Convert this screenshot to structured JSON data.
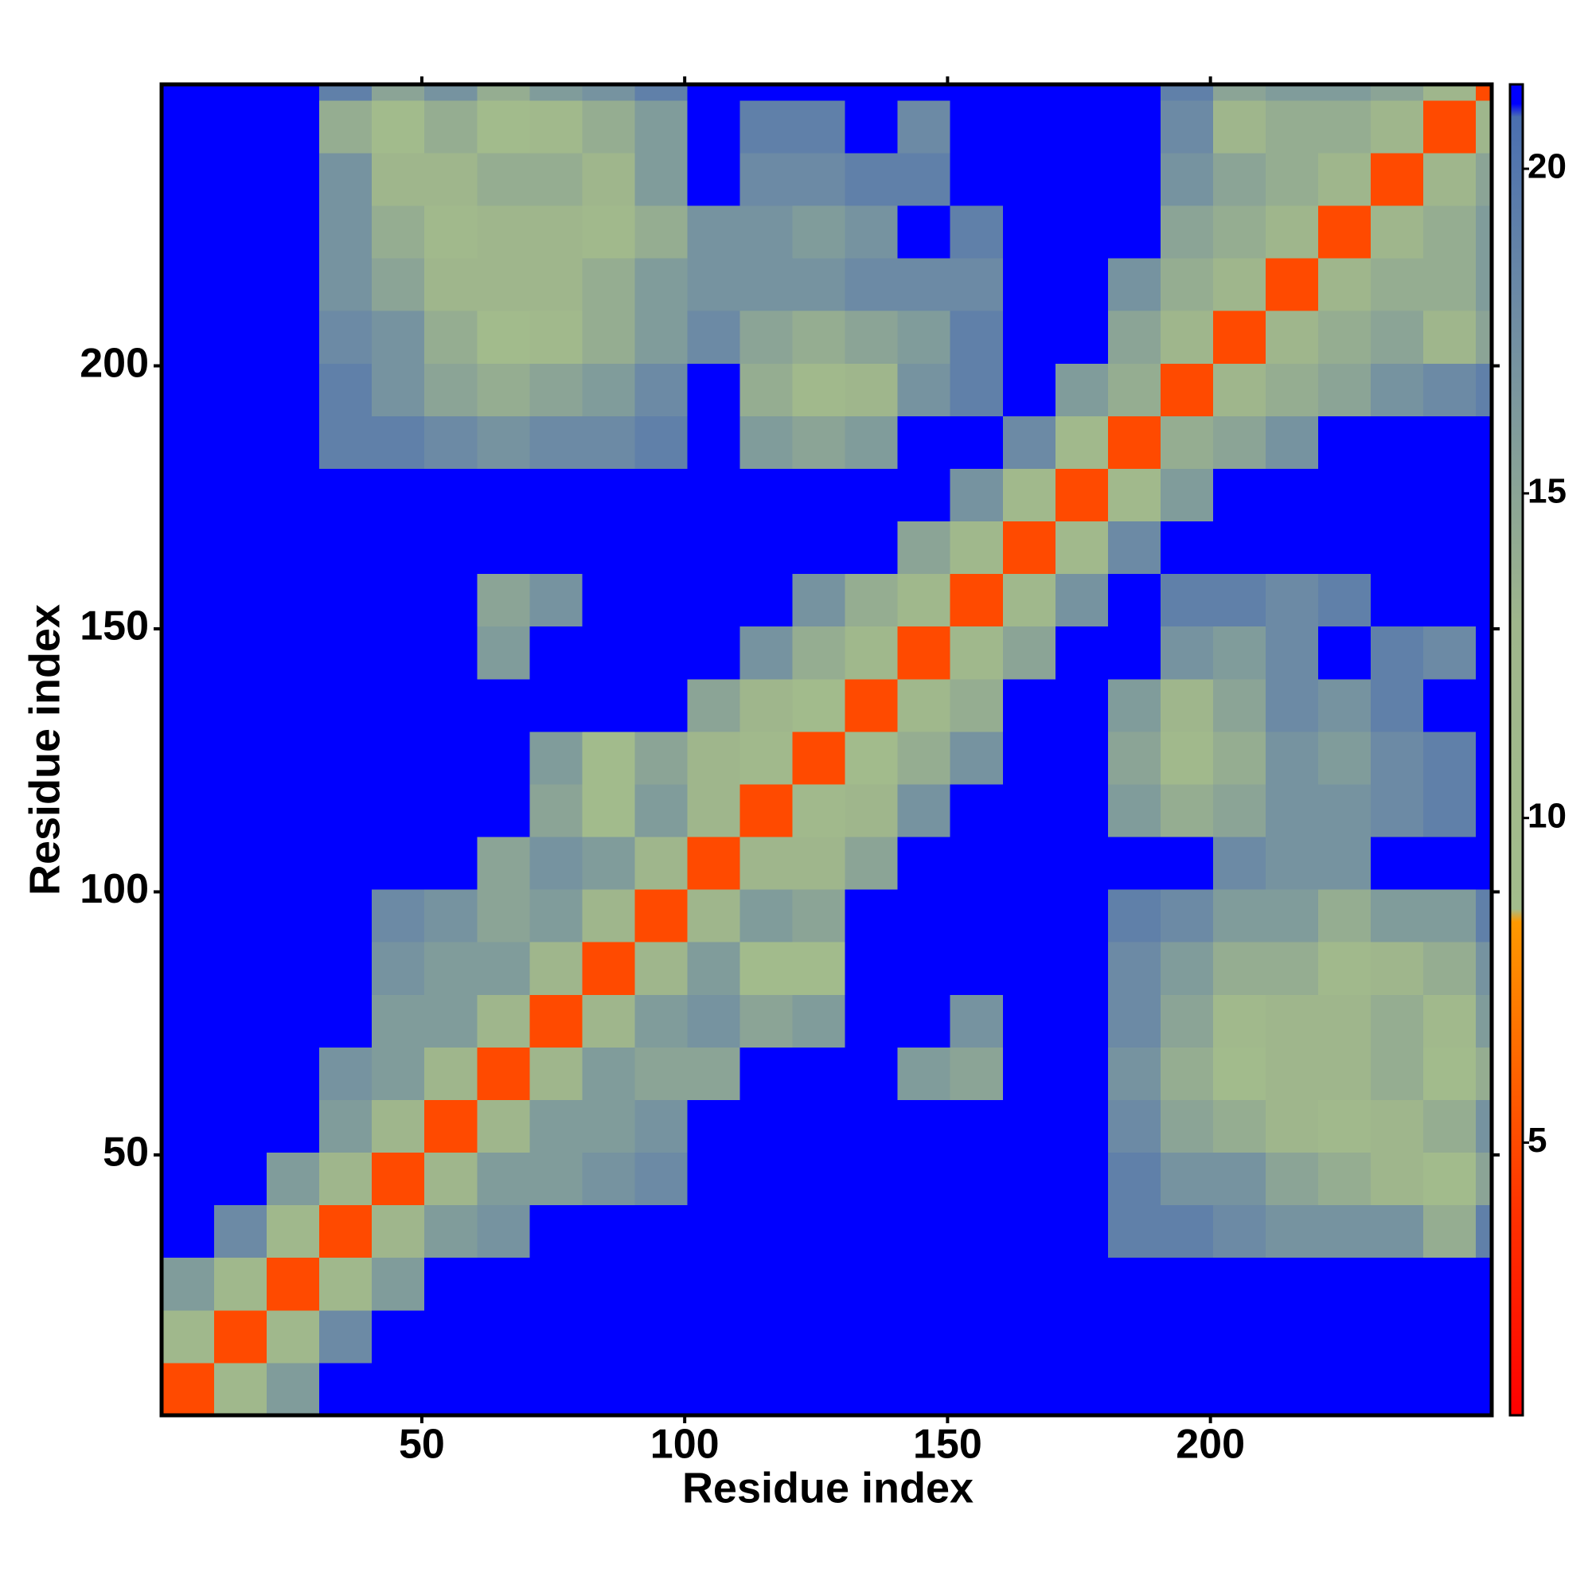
{
  "chart_data": {
    "type": "heatmap",
    "xlabel": "Residue index",
    "ylabel": "Residue index",
    "bins": [
      0.5,
      10.5,
      20.5,
      30.5,
      40.5,
      50.5,
      60.5,
      70.5,
      80.5,
      90.5,
      100.5,
      110.5,
      120.5,
      130.5,
      140.5,
      150.5,
      160.5,
      170.5,
      180.5,
      190.5,
      200.5,
      210.5,
      220.5,
      230.5,
      240.5,
      250.5,
      253.5
    ],
    "xlim": [
      0.5,
      253.5
    ],
    "ylim": [
      0.5,
      253.5
    ],
    "xticks": [
      50,
      100,
      150,
      200
    ],
    "yticks": [
      50,
      100,
      150,
      200
    ],
    "zlim": [
      0.8,
      21.3
    ],
    "zticks": [
      5,
      10,
      15,
      20
    ],
    "colorscale": [
      [
        0.8,
        "#ff0000"
      ],
      [
        4,
        "#ff3300"
      ],
      [
        8.4,
        "#ff9900"
      ],
      [
        8.6,
        "#a3bd8c"
      ],
      [
        13,
        "#9fb68c"
      ],
      [
        18,
        "#6c8aa5"
      ],
      [
        20.8,
        "#4a6fb0"
      ],
      [
        21,
        "#0000ff"
      ],
      [
        21.3,
        "#0000ff"
      ]
    ],
    "z": [
      [
        5,
        12,
        16,
        21,
        21,
        21,
        21,
        21,
        21,
        21,
        21,
        21,
        21,
        21,
        21,
        21,
        21,
        21,
        21,
        21,
        21,
        21,
        21,
        21,
        21,
        21
      ],
      [
        12,
        5,
        12,
        18,
        21,
        21,
        21,
        21,
        21,
        21,
        21,
        21,
        21,
        21,
        21,
        21,
        21,
        21,
        21,
        21,
        21,
        21,
        21,
        21,
        21,
        21
      ],
      [
        16,
        12,
        5,
        12,
        16,
        21,
        21,
        21,
        21,
        21,
        21,
        21,
        21,
        21,
        21,
        21,
        21,
        21,
        21,
        21,
        21,
        21,
        21,
        21,
        21,
        21
      ],
      [
        21,
        18,
        12,
        5,
        13,
        16,
        17,
        21,
        21,
        21,
        21,
        21,
        21,
        21,
        21,
        21,
        21,
        21,
        19,
        19,
        18,
        17,
        17,
        17,
        14,
        19
      ],
      [
        21,
        21,
        16,
        13,
        5,
        13,
        16,
        16,
        17,
        18,
        21,
        21,
        21,
        21,
        21,
        21,
        21,
        21,
        19,
        17,
        17,
        15,
        14,
        13,
        10,
        15
      ],
      [
        21,
        21,
        21,
        16,
        13,
        5,
        13,
        16,
        16,
        17,
        21,
        21,
        21,
        21,
        21,
        21,
        21,
        21,
        18,
        15,
        14,
        13,
        11,
        13,
        14,
        17
      ],
      [
        21,
        21,
        21,
        17,
        16,
        13,
        5,
        13,
        16,
        15,
        15,
        21,
        21,
        21,
        16,
        15,
        21,
        21,
        17,
        14,
        10,
        13,
        13,
        14,
        10,
        14
      ],
      [
        21,
        21,
        21,
        21,
        16,
        16,
        13,
        5,
        13,
        16,
        17,
        15,
        16,
        21,
        21,
        17,
        21,
        21,
        18,
        15,
        11,
        13,
        13,
        14,
        11,
        16
      ],
      [
        21,
        21,
        21,
        21,
        17,
        16,
        16,
        13,
        5,
        13,
        16,
        10,
        10,
        21,
        21,
        21,
        21,
        21,
        18,
        16,
        14,
        14,
        11,
        13,
        14,
        17
      ],
      [
        21,
        21,
        21,
        21,
        18,
        17,
        15,
        16,
        13,
        5,
        13,
        16,
        15,
        21,
        21,
        21,
        21,
        21,
        19,
        18,
        16,
        16,
        14,
        16,
        16,
        19
      ],
      [
        21,
        21,
        21,
        21,
        21,
        21,
        15,
        17,
        16,
        13,
        5,
        13,
        13,
        15,
        21,
        21,
        21,
        21,
        21,
        21,
        18,
        17,
        17,
        21,
        21,
        21
      ],
      [
        21,
        21,
        21,
        21,
        21,
        21,
        21,
        15,
        10,
        16,
        13,
        5,
        11,
        13,
        17,
        21,
        21,
        21,
        16,
        14,
        15,
        17,
        17,
        18,
        19,
        21
      ],
      [
        21,
        21,
        21,
        21,
        21,
        21,
        21,
        16,
        10,
        15,
        13,
        11,
        5,
        10,
        14,
        17,
        21,
        21,
        15,
        11,
        14,
        17,
        16,
        18,
        19,
        21
      ],
      [
        21,
        21,
        21,
        21,
        21,
        21,
        21,
        21,
        21,
        21,
        15,
        13,
        10,
        5,
        12,
        14,
        21,
        21,
        16,
        13,
        15,
        18,
        17,
        19,
        21,
        21
      ],
      [
        21,
        21,
        21,
        21,
        21,
        21,
        16,
        21,
        21,
        21,
        21,
        17,
        14,
        12,
        5,
        12,
        15,
        21,
        21,
        17,
        16,
        18,
        21,
        19,
        18,
        21
      ],
      [
        21,
        21,
        21,
        21,
        21,
        21,
        15,
        17,
        21,
        21,
        21,
        21,
        17,
        14,
        12,
        5,
        12,
        17,
        21,
        19,
        19,
        18,
        19,
        21,
        21,
        21
      ],
      [
        21,
        21,
        21,
        21,
        21,
        21,
        21,
        21,
        21,
        21,
        21,
        21,
        21,
        21,
        15,
        12,
        5,
        11,
        18,
        21,
        21,
        21,
        21,
        21,
        21,
        21
      ],
      [
        21,
        21,
        21,
        21,
        21,
        21,
        21,
        21,
        21,
        21,
        21,
        21,
        21,
        21,
        21,
        17,
        11,
        5,
        11,
        16,
        21,
        21,
        21,
        21,
        21,
        21
      ],
      [
        21,
        21,
        21,
        19,
        19,
        18,
        17,
        18,
        18,
        19,
        21,
        16,
        15,
        16,
        21,
        21,
        18,
        11,
        5,
        14,
        15,
        17,
        21,
        21,
        21,
        21
      ],
      [
        21,
        21,
        21,
        19,
        17,
        15,
        14,
        15,
        16,
        18,
        21,
        14,
        11,
        13,
        17,
        19,
        21,
        16,
        14,
        5,
        13,
        14,
        15,
        17,
        18,
        19
      ],
      [
        21,
        21,
        21,
        18,
        17,
        14,
        10,
        11,
        14,
        16,
        18,
        15,
        14,
        15,
        16,
        19,
        21,
        21,
        15,
        13,
        5,
        13,
        14,
        15,
        13,
        15
      ],
      [
        21,
        21,
        21,
        17,
        15,
        13,
        13,
        13,
        14,
        16,
        17,
        17,
        17,
        18,
        18,
        18,
        21,
        21,
        17,
        14,
        13,
        5,
        13,
        14,
        14,
        16
      ],
      [
        21,
        21,
        21,
        17,
        14,
        11,
        13,
        13,
        11,
        14,
        17,
        17,
        16,
        17,
        21,
        19,
        21,
        21,
        21,
        15,
        14,
        13,
        5,
        13,
        14,
        16
      ],
      [
        21,
        21,
        21,
        17,
        13,
        13,
        14,
        14,
        13,
        16,
        21,
        18,
        18,
        19,
        19,
        21,
        21,
        21,
        21,
        17,
        15,
        14,
        13,
        5,
        13,
        15
      ],
      [
        21,
        21,
        21,
        14,
        10,
        14,
        10,
        11,
        14,
        16,
        21,
        19,
        19,
        21,
        18,
        21,
        21,
        21,
        21,
        18,
        13,
        14,
        14,
        13,
        5,
        13
      ],
      [
        21,
        21,
        21,
        19,
        15,
        17,
        14,
        16,
        17,
        19,
        21,
        21,
        21,
        21,
        21,
        21,
        21,
        21,
        21,
        19,
        15,
        16,
        16,
        15,
        13,
        5
      ]
    ]
  }
}
